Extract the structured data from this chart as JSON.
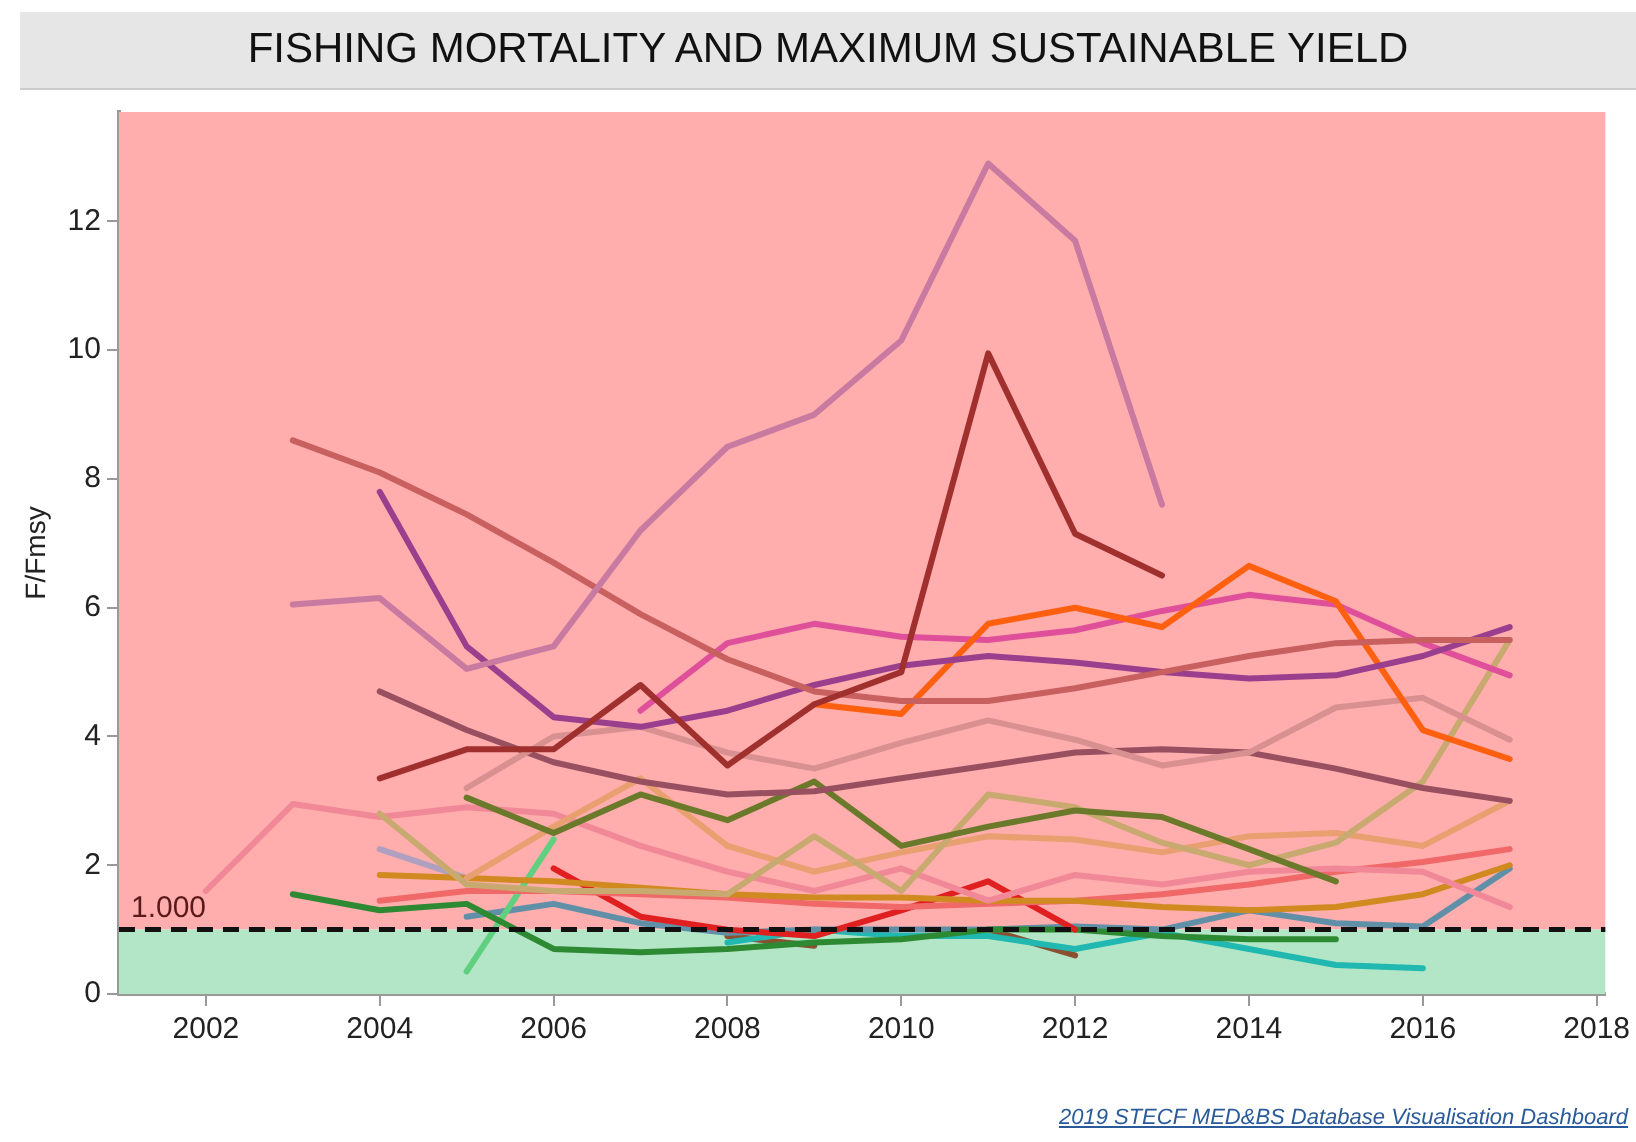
{
  "chart_data": {
    "type": "line",
    "title": "FISHING MORTALITY AND MAXIMUM SUSTAINABLE YIELD",
    "ylabel": "F/Fmsy",
    "xlim": [
      2001,
      2018.1
    ],
    "xticks": [
      2002,
      2004,
      2006,
      2008,
      2010,
      2012,
      2014,
      2016,
      2018
    ],
    "ylim": [
      0,
      13.7
    ],
    "yticks": [
      0,
      2,
      4,
      6,
      8,
      10,
      12
    ],
    "grid": false,
    "legend": false,
    "marker": "none",
    "line_style": "solid",
    "bands": [
      {
        "axis": "y",
        "from": 1,
        "to": 13.7,
        "color": "#ffadad"
      },
      {
        "axis": "y",
        "from": 0,
        "to": 1,
        "color": "#b2e6c6"
      }
    ],
    "ref_lines": [
      {
        "axis": "y",
        "value": 1,
        "label": "1.000",
        "color": "#111111",
        "line_style": "dashed"
      }
    ],
    "annotations": [
      "2019 STECF MED&BS Database Visualisation Dashboard"
    ],
    "series": [
      {
        "color": "#c87aa0",
        "x": [
          2003,
          2004,
          2005,
          2006,
          2007,
          2008,
          2009,
          2010,
          2011,
          2012,
          2013
        ],
        "values": [
          6.05,
          6.15,
          5.05,
          5.4,
          7.2,
          8.5,
          9.0,
          10.15,
          12.9,
          11.7,
          7.6
        ]
      },
      {
        "color": "#a0302e",
        "x": [
          2004,
          2005,
          2006,
          2007,
          2008,
          2009,
          2010,
          2011,
          2012,
          2013
        ],
        "values": [
          3.35,
          3.8,
          3.8,
          4.8,
          3.55,
          4.5,
          5.0,
          9.95,
          7.15,
          6.5
        ]
      },
      {
        "color": "#c86060",
        "x": [
          2003,
          2004,
          2005,
          2006,
          2007,
          2008,
          2009,
          2010,
          2011,
          2012,
          2013,
          2014,
          2015,
          2016,
          2017
        ],
        "values": [
          8.6,
          8.1,
          7.45,
          6.7,
          5.9,
          5.2,
          4.7,
          4.55,
          4.55,
          4.75,
          5.0,
          5.25,
          5.45,
          5.5,
          5.5
        ]
      },
      {
        "color": "#9a3f8e",
        "x": [
          2004,
          2005,
          2006,
          2007,
          2008,
          2009,
          2010,
          2011,
          2012,
          2013,
          2014,
          2015,
          2016,
          2017
        ],
        "values": [
          7.8,
          5.4,
          4.3,
          4.15,
          4.4,
          4.8,
          5.1,
          5.25,
          5.15,
          5.0,
          4.9,
          4.95,
          5.25,
          5.7
        ]
      },
      {
        "color": "#ff6010",
        "x": [
          2009,
          2010,
          2011,
          2012,
          2013,
          2014,
          2015,
          2016,
          2017
        ],
        "values": [
          4.5,
          4.35,
          5.75,
          6.0,
          5.7,
          6.65,
          6.1,
          4.1,
          3.65
        ]
      },
      {
        "color": "#e0509a",
        "x": [
          2007,
          2008,
          2009,
          2010,
          2011,
          2012,
          2013,
          2014,
          2015,
          2016,
          2017
        ],
        "values": [
          4.4,
          5.45,
          5.75,
          5.55,
          5.5,
          5.65,
          5.95,
          6.2,
          6.05,
          5.45,
          4.95
        ]
      },
      {
        "color": "#d89090",
        "x": [
          2005,
          2006,
          2007,
          2008,
          2009,
          2010,
          2011,
          2012,
          2013,
          2014,
          2015,
          2016,
          2017
        ],
        "values": [
          3.2,
          4.0,
          4.15,
          3.75,
          3.5,
          3.9,
          4.25,
          3.95,
          3.55,
          3.75,
          4.45,
          4.6,
          3.95
        ]
      },
      {
        "color": "#985060",
        "x": [
          2004,
          2005,
          2006,
          2007,
          2008,
          2009,
          2010,
          2011,
          2012,
          2013,
          2014,
          2015,
          2016,
          2017
        ],
        "values": [
          4.7,
          4.1,
          3.6,
          3.3,
          3.1,
          3.15,
          3.35,
          3.55,
          3.75,
          3.8,
          3.75,
          3.5,
          3.2,
          3.0
        ]
      },
      {
        "color": "#6b7a2a",
        "x": [
          2005,
          2006,
          2007,
          2008,
          2009,
          2010,
          2011,
          2012,
          2013,
          2014,
          2015
        ],
        "values": [
          3.05,
          2.5,
          3.1,
          2.7,
          3.3,
          2.3,
          2.6,
          2.85,
          2.75,
          2.25,
          1.75
        ]
      },
      {
        "color": "#c8aa70",
        "x": [
          2004,
          2005,
          2006,
          2007,
          2008,
          2009,
          2010,
          2011,
          2012,
          2013,
          2014,
          2015,
          2016,
          2017
        ],
        "values": [
          2.8,
          1.7,
          1.6,
          1.6,
          1.55,
          2.45,
          1.6,
          3.1,
          2.9,
          2.35,
          2.0,
          2.35,
          3.3,
          5.5
        ]
      },
      {
        "color": "#e8a070",
        "x": [
          2005,
          2006,
          2007,
          2008,
          2009,
          2010,
          2011,
          2012,
          2013,
          2014,
          2015,
          2016,
          2017
        ],
        "values": [
          1.8,
          2.6,
          3.35,
          2.3,
          1.9,
          2.2,
          2.45,
          2.4,
          2.2,
          2.45,
          2.5,
          2.3,
          3.0
        ]
      },
      {
        "color": "#f08898",
        "x": [
          2002,
          2003,
          2004,
          2005,
          2006,
          2007,
          2008,
          2009,
          2010,
          2011,
          2012,
          2013,
          2014,
          2015,
          2016,
          2017
        ],
        "values": [
          1.6,
          2.95,
          2.75,
          2.9,
          2.8,
          2.3,
          1.9,
          1.6,
          1.95,
          1.45,
          1.85,
          1.7,
          1.9,
          1.95,
          1.9,
          1.35
        ]
      },
      {
        "color": "#d08a20",
        "x": [
          2004,
          2005,
          2006,
          2007,
          2008,
          2009,
          2010,
          2011,
          2012,
          2013,
          2014,
          2015,
          2016,
          2017
        ],
        "values": [
          1.85,
          1.8,
          1.75,
          1.65,
          1.55,
          1.5,
          1.5,
          1.45,
          1.45,
          1.35,
          1.3,
          1.35,
          1.55,
          2.0
        ]
      },
      {
        "color": "#f06868",
        "x": [
          2004,
          2005,
          2006,
          2007,
          2008,
          2009,
          2010,
          2011,
          2012,
          2013,
          2014,
          2015,
          2016,
          2017
        ],
        "values": [
          1.45,
          1.6,
          1.6,
          1.55,
          1.5,
          1.4,
          1.35,
          1.4,
          1.45,
          1.55,
          1.7,
          1.9,
          2.05,
          2.25
        ]
      },
      {
        "color": "#e02020",
        "x": [
          2006,
          2007,
          2008,
          2009,
          2010,
          2011,
          2012
        ],
        "values": [
          1.95,
          1.2,
          1.0,
          0.9,
          1.3,
          1.75,
          1.0
        ]
      },
      {
        "color": "#2e8a32",
        "x": [
          2003,
          2004,
          2005,
          2006,
          2007,
          2008,
          2009,
          2010,
          2011,
          2012,
          2013,
          2014,
          2015
        ],
        "values": [
          1.55,
          1.3,
          1.4,
          0.7,
          0.65,
          0.7,
          0.8,
          0.85,
          1.0,
          1.0,
          0.9,
          0.85,
          0.85
        ]
      },
      {
        "color": "#60d080",
        "x": [
          2005,
          2006
        ],
        "values": [
          0.35,
          2.4
        ]
      },
      {
        "color": "#6090a8",
        "x": [
          2005,
          2006,
          2007,
          2008,
          2009,
          2010,
          2011,
          2012,
          2013,
          2014,
          2015,
          2016,
          2017
        ],
        "values": [
          1.2,
          1.4,
          1.1,
          0.95,
          1.0,
          1.0,
          1.0,
          1.05,
          1.0,
          1.3,
          1.1,
          1.05,
          1.95
        ]
      },
      {
        "color": "#20b8b0",
        "x": [
          2008,
          2009,
          2010,
          2011,
          2012,
          2013,
          2014,
          2015,
          2016
        ],
        "values": [
          0.8,
          1.0,
          0.9,
          0.9,
          0.7,
          0.95,
          0.7,
          0.45,
          0.4
        ]
      },
      {
        "color": "#b0a0c0",
        "x": [
          2004,
          2005
        ],
        "values": [
          2.25,
          1.8
        ]
      },
      {
        "color": "#8a5030",
        "x": [
          2008,
          2009,
          2010,
          2011,
          2012
        ],
        "values": [
          0.9,
          0.75,
          null,
          1.0,
          0.6
        ]
      }
    ]
  }
}
